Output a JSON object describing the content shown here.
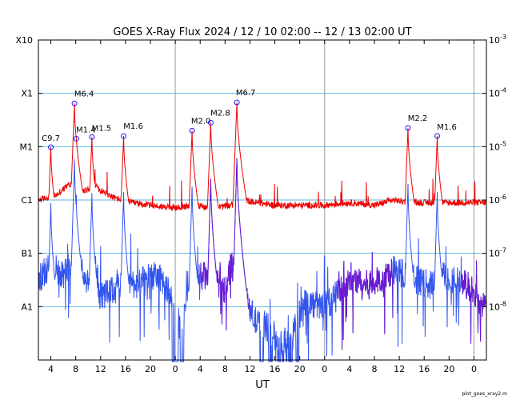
{
  "chart_data": {
    "type": "line",
    "title": "GOES X-Ray Flux   2024 / 12 / 10   02:00 -- 12 / 13   02:00   UT",
    "xlabel": "UT",
    "footer": "plot_goes_xray2.m",
    "x_range_hours": [
      0,
      72
    ],
    "x_ticks": [
      {
        "h": 2,
        "label": "4"
      },
      {
        "h": 6,
        "label": "8"
      },
      {
        "h": 10,
        "label": "12"
      },
      {
        "h": 14,
        "label": "16"
      },
      {
        "h": 18,
        "label": "20"
      },
      {
        "h": 22,
        "label": "0"
      },
      {
        "h": 26,
        "label": "4"
      },
      {
        "h": 30,
        "label": "8"
      },
      {
        "h": 34,
        "label": "12"
      },
      {
        "h": 38,
        "label": "16"
      },
      {
        "h": 42,
        "label": "20"
      },
      {
        "h": 46,
        "label": "0"
      },
      {
        "h": 50,
        "label": "4"
      },
      {
        "h": 54,
        "label": "8"
      },
      {
        "h": 58,
        "label": "12"
      },
      {
        "h": 62,
        "label": "16"
      },
      {
        "h": 66,
        "label": "20"
      },
      {
        "h": 70,
        "label": "0"
      }
    ],
    "day_boundaries_hours": [
      22,
      46,
      70
    ],
    "y_scale": "log",
    "y_range_log10": [
      -9,
      -3
    ],
    "y_left_ticks": [
      {
        "log": -3,
        "label": "X10"
      },
      {
        "log": -4,
        "label": "X1"
      },
      {
        "log": -5,
        "label": "M1"
      },
      {
        "log": -6,
        "label": "C1"
      },
      {
        "log": -7,
        "label": "B1"
      },
      {
        "log": -8,
        "label": "A1"
      }
    ],
    "y_right_ticks": [
      {
        "log": -3,
        "base": "10",
        "exp": "-3"
      },
      {
        "log": -4,
        "base": "10",
        "exp": "-4"
      },
      {
        "log": -5,
        "base": "10",
        "exp": "-5"
      },
      {
        "log": -6,
        "base": "10",
        "exp": "-6"
      },
      {
        "log": -7,
        "base": "10",
        "exp": "-7"
      },
      {
        "log": -8,
        "base": "10",
        "exp": "-8"
      }
    ],
    "gridlines_log10": [
      -4,
      -5,
      -6,
      -7,
      -8
    ],
    "colors": {
      "long_channel": "#ee0000",
      "short_channel": "#3355ee",
      "short_channel_overlap": "#6a1ad0",
      "grid": "#5fb4dc",
      "day_line": "#9a9a9a",
      "marker": "#1a1aee"
    },
    "flares": [
      {
        "label": "C9.7",
        "h": 2.0,
        "log": -5.01
      },
      {
        "label": "M6.4",
        "h": 5.8,
        "log": -4.19
      },
      {
        "label": "M1.4",
        "h": 6.1,
        "log": -4.85
      },
      {
        "label": "M1.5",
        "h": 8.6,
        "log": -4.82
      },
      {
        "label": "M1.6",
        "h": 13.7,
        "log": -4.8
      },
      {
        "label": "M2.0",
        "h": 24.7,
        "log": -4.7
      },
      {
        "label": "M2.8",
        "h": 27.7,
        "log": -4.55
      },
      {
        "label": "M6.7",
        "h": 31.9,
        "log": -4.17
      },
      {
        "label": "M2.2",
        "h": 59.4,
        "log": -4.65
      },
      {
        "label": "M1.6",
        "h": 64.1,
        "log": -4.8
      }
    ],
    "long_channel_baseline_log10": [
      [
        0,
        -6.0
      ],
      [
        3,
        -5.9
      ],
      [
        5,
        -5.7
      ],
      [
        7,
        -5.85
      ],
      [
        9,
        -5.75
      ],
      [
        12,
        -5.95
      ],
      [
        15,
        -6.05
      ],
      [
        18,
        -6.1
      ],
      [
        22,
        -6.15
      ],
      [
        25,
        -6.1
      ],
      [
        28,
        -6.15
      ],
      [
        31,
        -6.1
      ],
      [
        33,
        -6.0
      ],
      [
        35,
        -6.05
      ],
      [
        38,
        -6.1
      ],
      [
        42,
        -6.1
      ],
      [
        46,
        -6.1
      ],
      [
        50,
        -6.05
      ],
      [
        54,
        -6.1
      ],
      [
        57,
        -6.0
      ],
      [
        60,
        -6.05
      ],
      [
        63,
        -6.05
      ],
      [
        66,
        -6.05
      ],
      [
        69,
        -6.05
      ],
      [
        72,
        -6.05
      ]
    ],
    "short_channel_baseline_log10": [
      [
        0,
        -7.5
      ],
      [
        2,
        -7.2
      ],
      [
        4,
        -7.4
      ],
      [
        6,
        -7.0
      ],
      [
        8,
        -7.6
      ],
      [
        10,
        -7.8
      ],
      [
        12,
        -7.7
      ],
      [
        14,
        -7.5
      ],
      [
        16,
        -7.6
      ],
      [
        18,
        -7.4
      ],
      [
        20,
        -7.5
      ],
      [
        22,
        -8.0
      ],
      [
        23,
        -8.5
      ],
      [
        24,
        -7.6
      ],
      [
        26,
        -7.4
      ],
      [
        28,
        -7.5
      ],
      [
        30,
        -7.7
      ],
      [
        31,
        -7.2
      ],
      [
        33,
        -7.8
      ],
      [
        35,
        -8.3
      ],
      [
        37,
        -8.4
      ],
      [
        39,
        -8.7
      ],
      [
        41,
        -8.4
      ],
      [
        43,
        -7.9
      ],
      [
        45,
        -8.0
      ],
      [
        47,
        -7.9
      ],
      [
        49,
        -7.6
      ],
      [
        51,
        -7.5
      ],
      [
        53,
        -7.6
      ],
      [
        55,
        -7.5
      ],
      [
        57,
        -7.3
      ],
      [
        59,
        -7.4
      ],
      [
        61,
        -7.5
      ],
      [
        63,
        -7.6
      ],
      [
        65,
        -7.4
      ],
      [
        67,
        -7.5
      ],
      [
        69,
        -7.6
      ],
      [
        71,
        -7.9
      ],
      [
        72,
        -8.1
      ]
    ],
    "dropouts_hours": [
      [
        21.5,
        22.5
      ],
      [
        22.8,
        23.4
      ],
      [
        35.6,
        36.2
      ],
      [
        37.0,
        37.6
      ],
      [
        38.4,
        38.9
      ],
      [
        40.2,
        40.8
      ],
      [
        41.4,
        41.9
      ]
    ]
  }
}
